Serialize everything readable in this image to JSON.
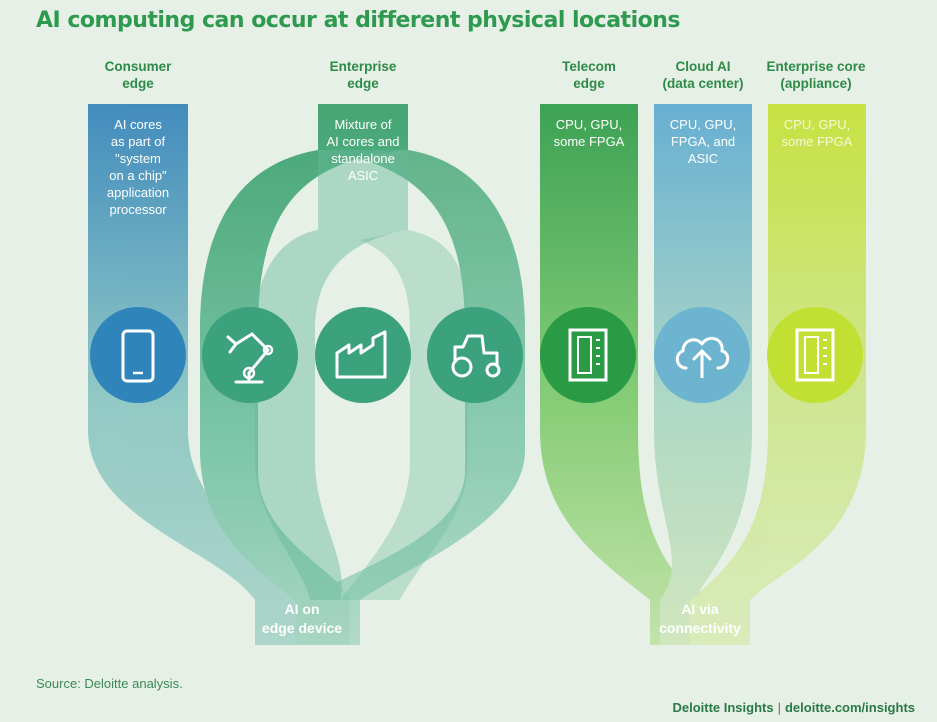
{
  "title": "AI computing can occur at different physical locations",
  "columns": [
    {
      "heading": "Consumer\nedge",
      "description": "AI cores\nas part of\n\"system\non a chip\"\napplication\nprocessor"
    },
    {
      "heading": "Enterprise\nedge",
      "description": "Mixture of\nAI cores and\nstandalone\nASIC"
    },
    {
      "heading": "Telecom\nedge",
      "description": "CPU, GPU,\nsome FPGA"
    },
    {
      "heading": "Cloud AI\n(data center)",
      "description": "CPU, GPU,\nFPGA, and\nASIC"
    },
    {
      "heading": "Enterprise core\n(appliance)",
      "description": "CPU, GPU,\nsome FPGA"
    }
  ],
  "icons": [
    "smartphone-icon",
    "robot-arm-icon",
    "factory-icon",
    "tractor-icon",
    "server-rack-icon",
    "cloud-upload-icon",
    "server-appliance-icon"
  ],
  "bottom_labels": {
    "edge": "AI on\nedge device",
    "connectivity": "AI via\nconnectivity"
  },
  "source": "Source: Deloitte analysis.",
  "footer": {
    "brand": "Deloitte Insights",
    "url": "deloitte.com/insights"
  },
  "colors": {
    "title": "#2e9a4f",
    "consumer": "#2f84b9",
    "enterprise_edge": "#3aa57a",
    "telecom": "#2f9a48",
    "cloud": "#67b6cf",
    "enterprise_core": "#b6dc3a"
  }
}
